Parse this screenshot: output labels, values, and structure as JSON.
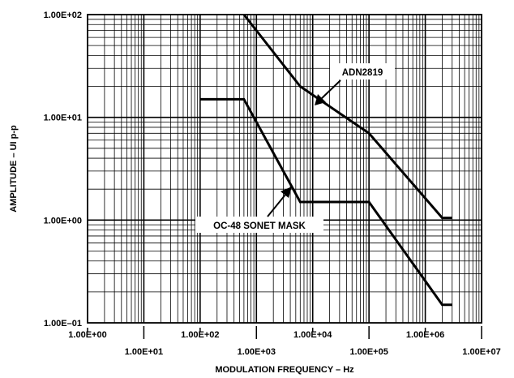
{
  "chart_data": {
    "type": "line",
    "xlabel": "MODULATION FREQUENCY – Hz",
    "ylabel": "AMPLITUDE – UI p-p",
    "xscale": "log",
    "yscale": "log",
    "xlim": [
      1,
      10000000
    ],
    "ylim": [
      0.1,
      100
    ],
    "grid": true,
    "x_tick_labels": [
      "1.00E+00",
      "1.00E+01",
      "1.00E+02",
      "1.00E+03",
      "1.00E+04",
      "1.00E+05",
      "1.00E+06",
      "1.00E+07"
    ],
    "y_tick_labels": [
      "1.00E–01",
      "1.00E+00",
      "1.00E+01",
      "1.00E+02"
    ],
    "series": [
      {
        "name": "ADN2819",
        "color": "#000000",
        "x": [
          600,
          6000,
          100000,
          2000000,
          3000000
        ],
        "y": [
          100,
          20,
          7,
          1.05,
          1.05
        ]
      },
      {
        "name": "OC-48 SONET MASK",
        "color": "#000000",
        "x": [
          100,
          600,
          6000,
          100000,
          2000000,
          3000000
        ],
        "y": [
          15,
          15,
          1.5,
          1.5,
          0.15,
          0.15
        ]
      }
    ],
    "annotations": [
      {
        "text": "ADN2819",
        "series": "ADN2819"
      },
      {
        "text": "OC-48 SONET MASK",
        "series": "OC-48 SONET MASK"
      }
    ]
  }
}
